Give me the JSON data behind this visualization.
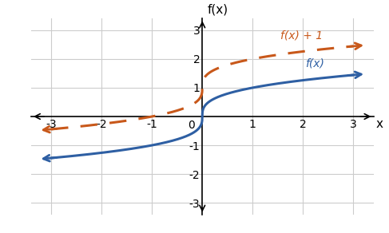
{
  "xlabel": "x",
  "ylabel": "f(x)",
  "xlim": [
    -3.4,
    3.4
  ],
  "ylim": [
    -3.4,
    3.4
  ],
  "xticks": [
    -3,
    -2,
    -1,
    1,
    2,
    3
  ],
  "yticks": [
    -3,
    -2,
    -1,
    1,
    2,
    3
  ],
  "fx_color": "#2e5fa3",
  "fx1_color": "#c8581a",
  "fx_label": "f(x)",
  "fx1_label": "f(x) + 1",
  "grid_color": "#cccccc",
  "background_color": "#ffffff",
  "label_fontsize": 11,
  "tick_fontsize": 10
}
